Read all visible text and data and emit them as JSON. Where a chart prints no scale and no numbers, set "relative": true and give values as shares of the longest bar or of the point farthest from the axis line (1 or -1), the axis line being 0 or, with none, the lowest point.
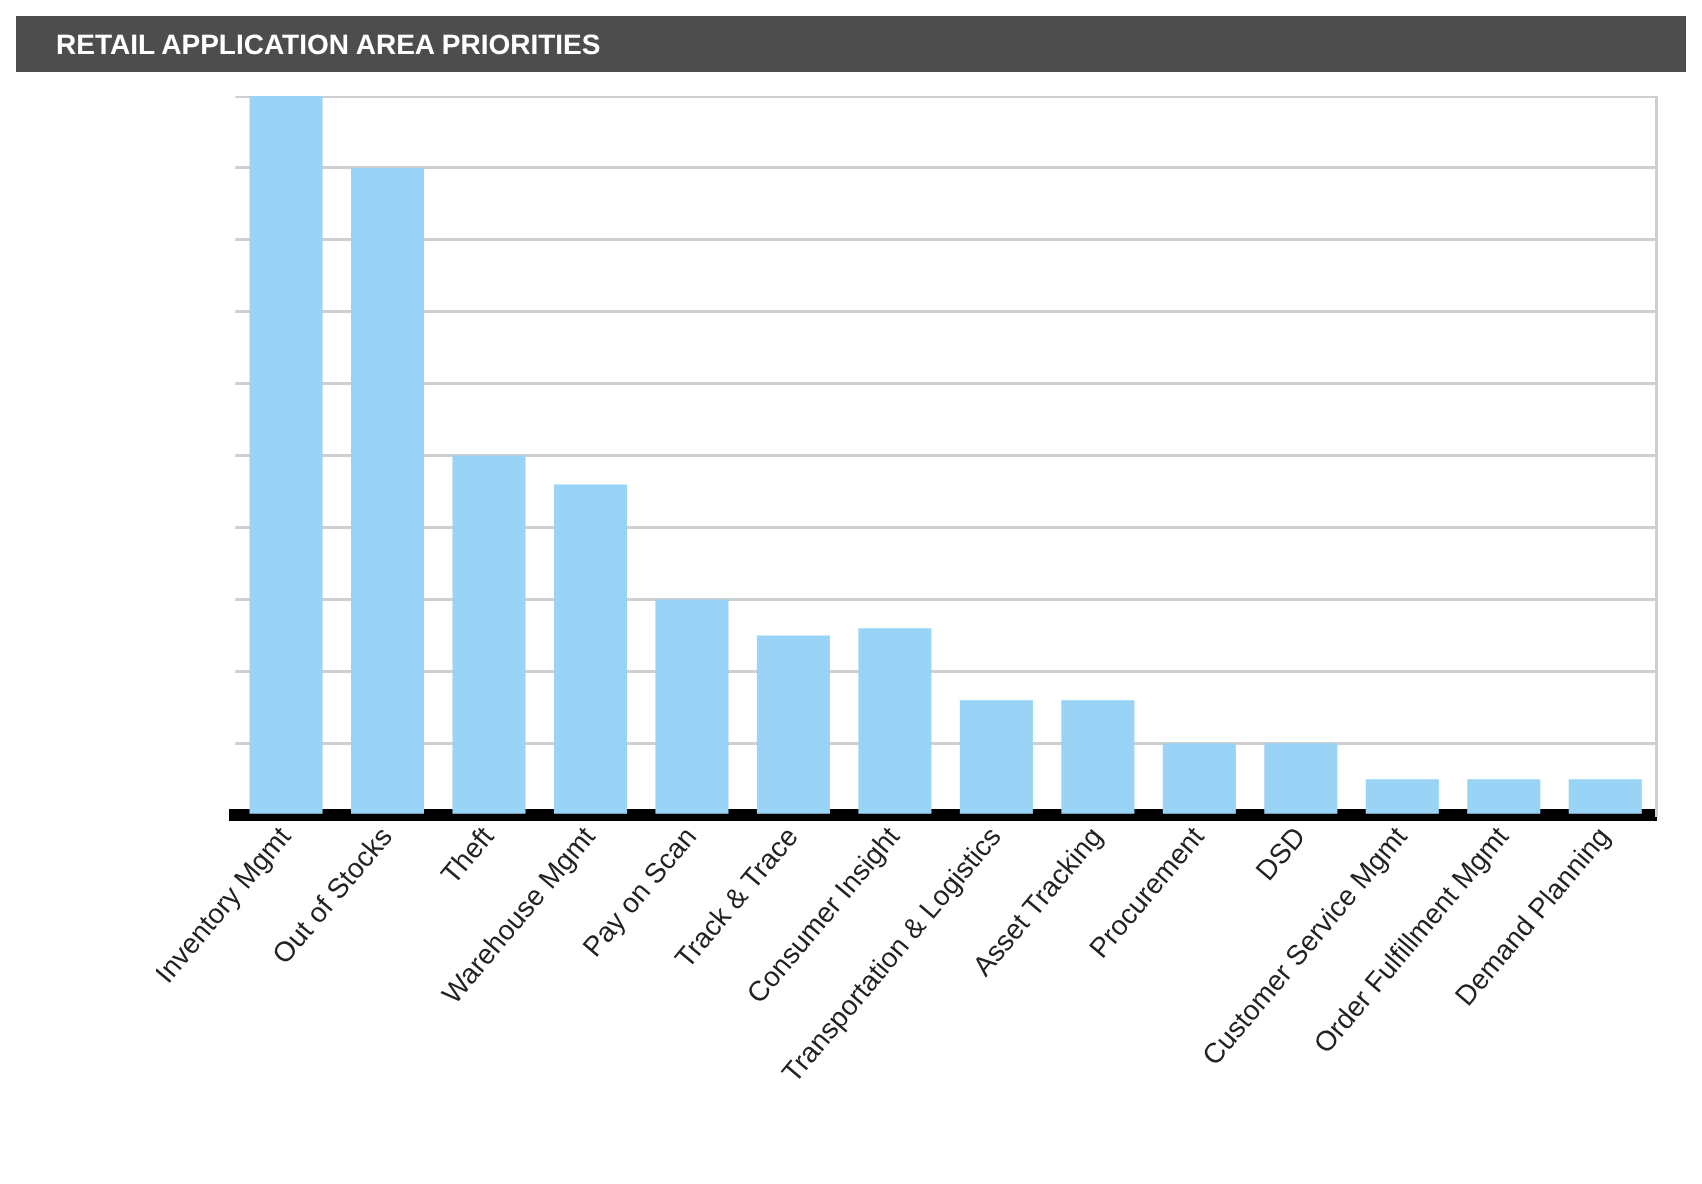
{
  "chart_data": {
    "type": "bar",
    "title": "RETAIL APPLICATION AREA PRIORITIES",
    "categories": [
      "Inventory Mgmt",
      "Out of Stocks",
      "Theft",
      "Warehouse Mgmt",
      "Pay on Scan",
      "Track & Trace",
      "Consumer Insight",
      "Transportation & Logistics",
      "Asset Tracking",
      "Procurement",
      "DSD",
      "Customer Service Mgmt",
      "Order Fulfillment Mgmt",
      "Demand Planning"
    ],
    "values": [
      1,
      0.9,
      0.5,
      0.46,
      0.3,
      0.25,
      0.26,
      0.16,
      0.16,
      0.1,
      0.1,
      0.05,
      0.05,
      0.05
    ],
    "color": "#99d3f5",
    "relative": true,
    "grid": "y",
    "legend": false
  }
}
